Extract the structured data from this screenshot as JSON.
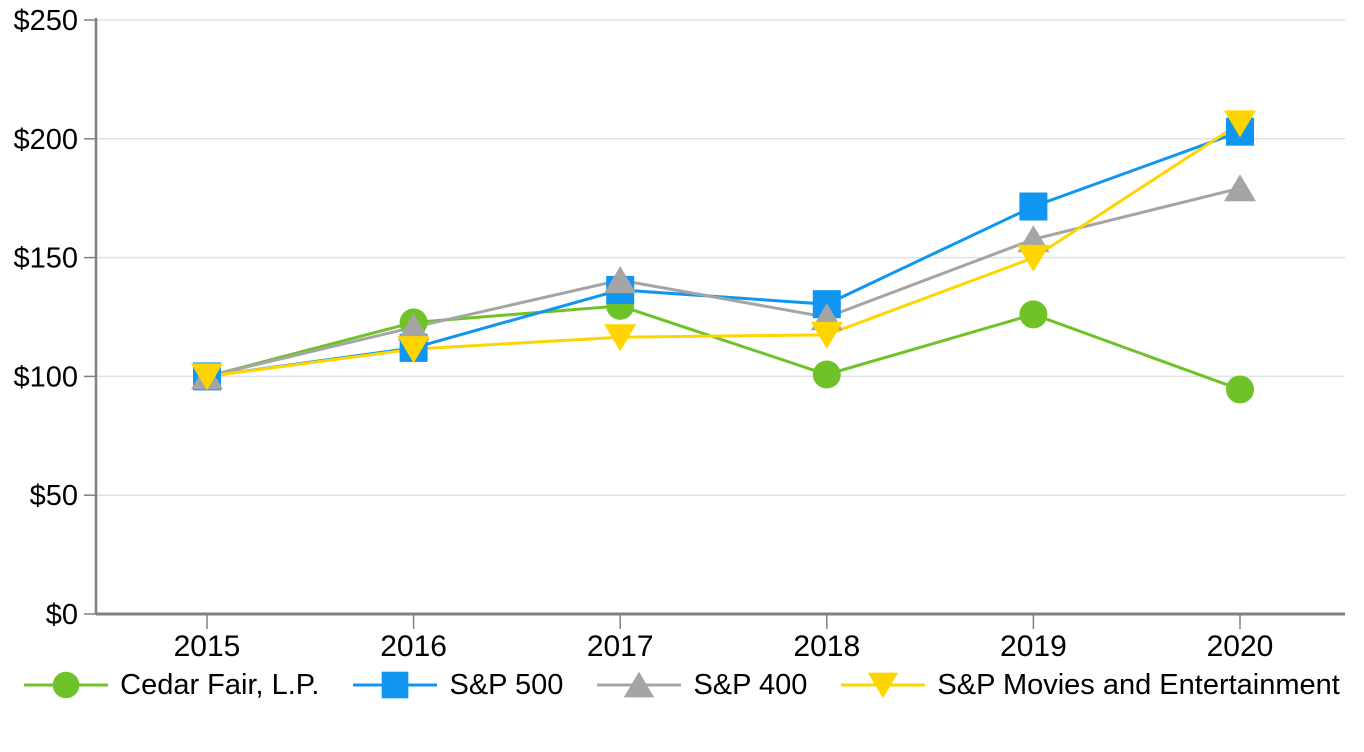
{
  "chart_data": {
    "type": "line",
    "title": "",
    "xlabel": "",
    "ylabel": "",
    "x": [
      "2015",
      "2016",
      "2017",
      "2018",
      "2019",
      "2020"
    ],
    "series": [
      {
        "name": "Cedar Fair, L.P.",
        "marker": "circle",
        "color": "#6FC228",
        "values": [
          100.0,
          122.7,
          129.7,
          100.8,
          126.1,
          94.5
        ]
      },
      {
        "name": "S&P 500",
        "marker": "square",
        "color": "#1095F1",
        "values": [
          100.0,
          112.0,
          136.4,
          130.4,
          171.5,
          203.0
        ]
      },
      {
        "name": "S&P 400",
        "marker": "triangle-up",
        "color": "#A5A5A5",
        "values": [
          100.0,
          120.7,
          140.5,
          124.9,
          157.7,
          179.2
        ]
      },
      {
        "name": "S&P Movies and Entertainment",
        "marker": "triangle-down",
        "color": "#FFD500",
        "values": [
          100.0,
          111.5,
          116.5,
          117.5,
          149.9,
          206.5
        ]
      }
    ],
    "yticks": [
      "$0",
      "$50",
      "$100",
      "$150",
      "$200",
      "$250"
    ],
    "ylim": [
      0,
      250
    ],
    "ytick_step": 50,
    "grid": true,
    "legend_position": "bottom",
    "axis_color": "#808080",
    "grid_color": "#E2E2E2",
    "text_color": "#000000"
  }
}
